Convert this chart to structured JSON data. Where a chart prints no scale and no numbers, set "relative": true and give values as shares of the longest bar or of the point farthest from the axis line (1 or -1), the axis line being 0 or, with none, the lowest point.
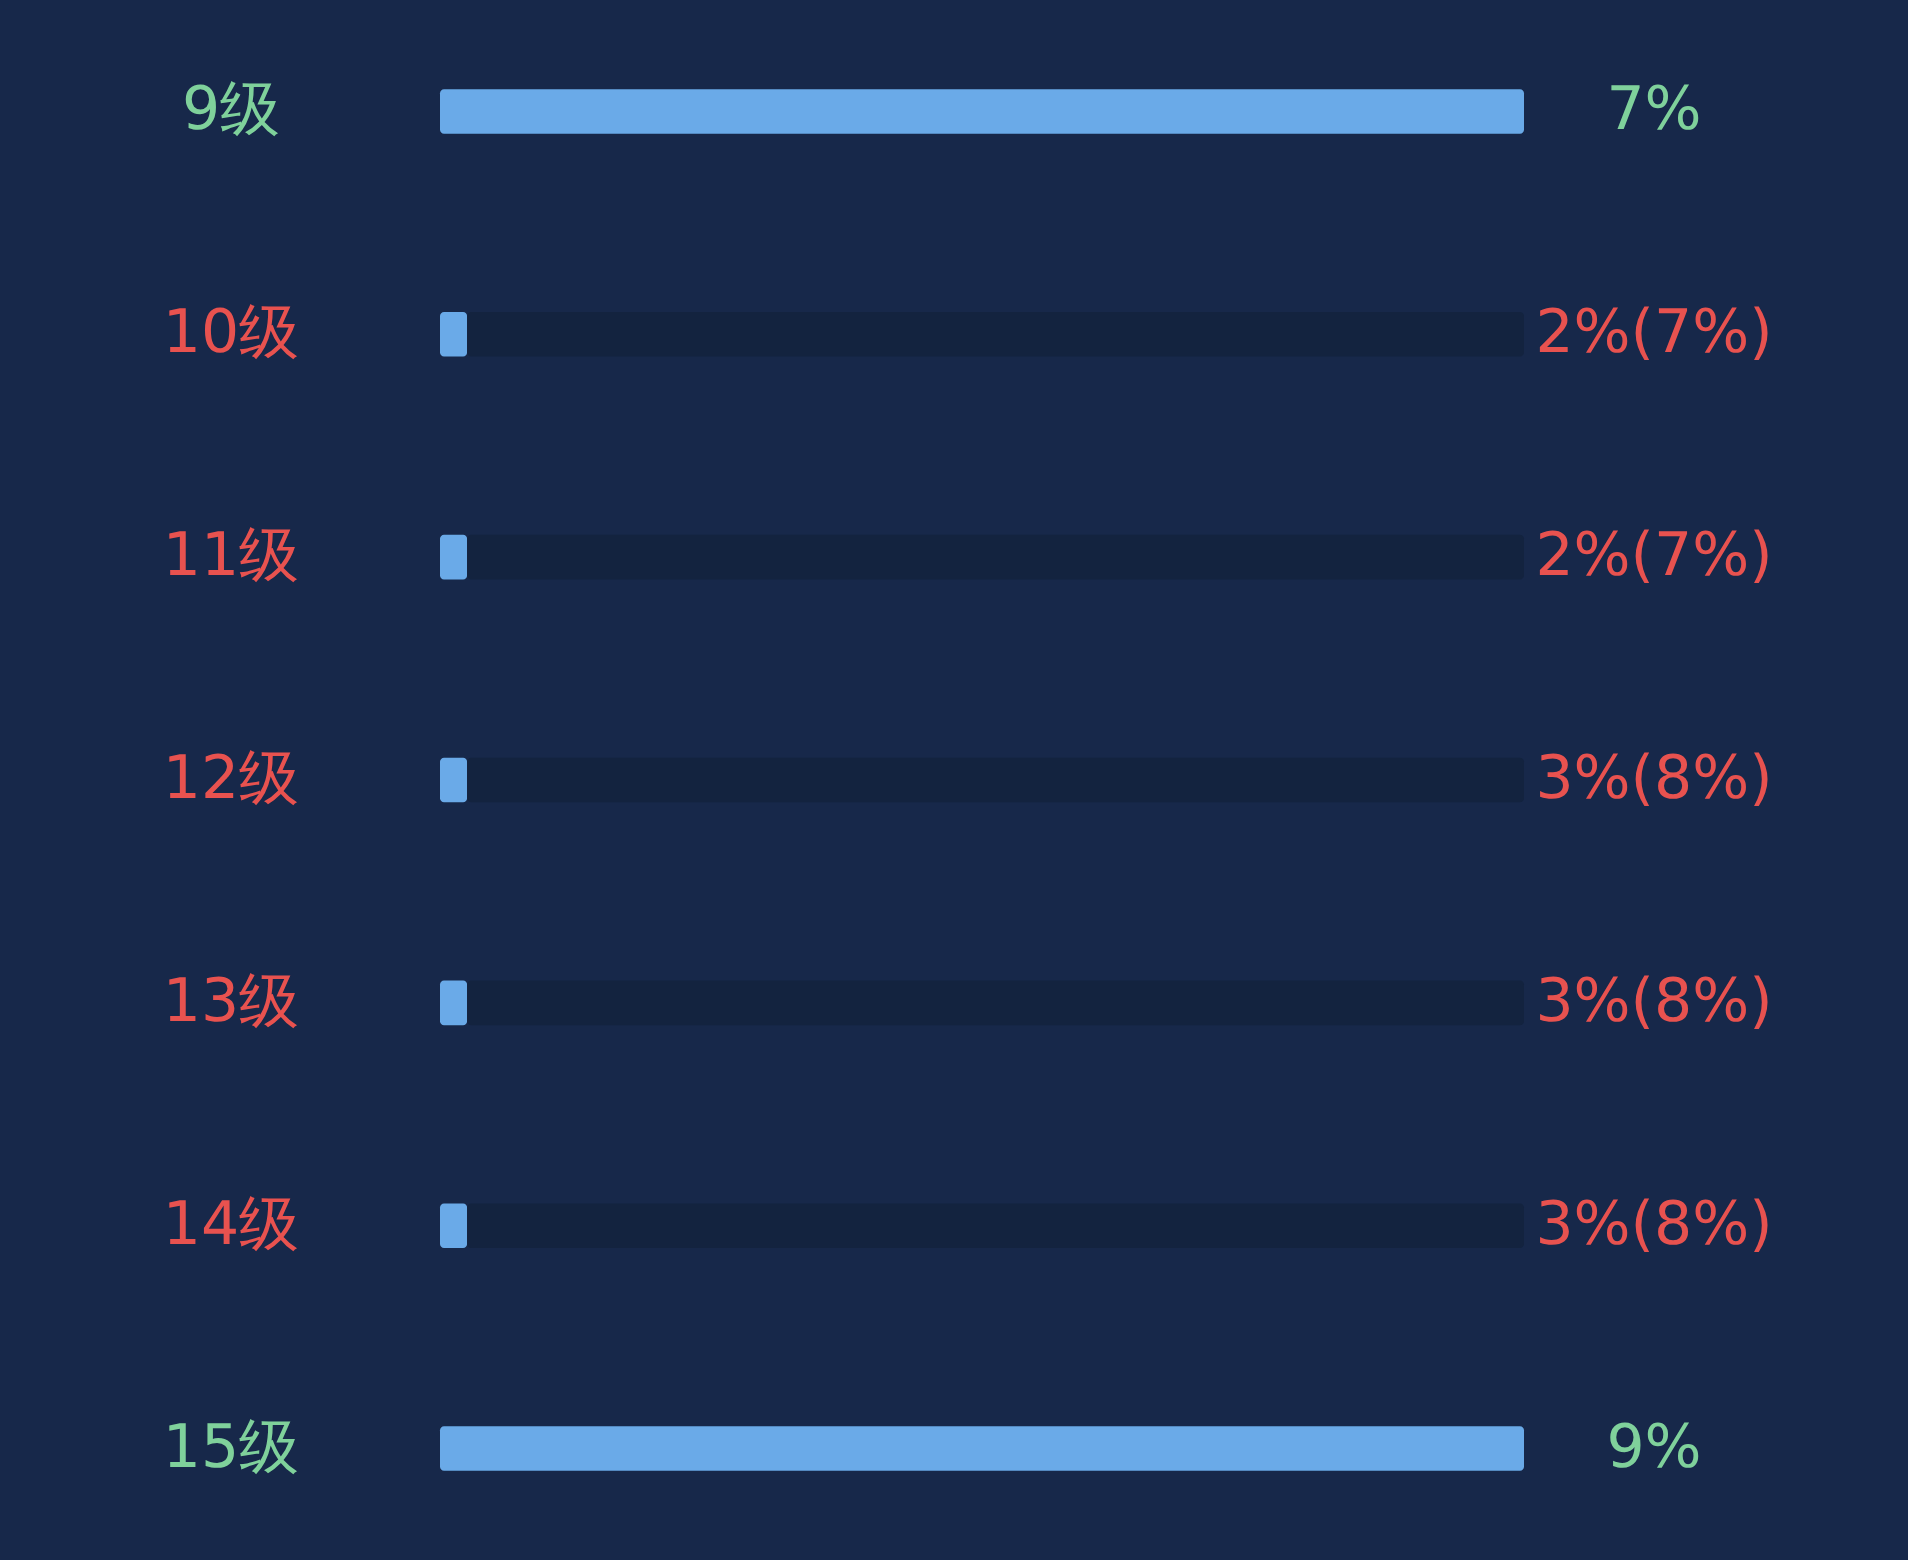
{
  "chart_data": {
    "type": "bar",
    "orientation": "horizontal",
    "relative": true,
    "stacked": true,
    "categories": [
      "9级",
      "10级",
      "11级",
      "12级",
      "13级",
      "14级",
      "15级"
    ],
    "series": [
      {
        "color": "#6aaae8",
        "values": [
          1,
          0.025,
          0.025,
          0.025,
          0.025,
          0.025,
          1
        ]
      },
      {
        "color": "#13233f",
        "values": [
          0,
          0.975,
          0.975,
          0.975,
          0.975,
          0.975,
          0
        ]
      }
    ],
    "annotations": [
      "7%",
      "2%(7%)",
      "2%(7%)",
      "3%(8%)",
      "3%(8%)",
      "3%(8%)",
      "9%"
    ]
  }
}
